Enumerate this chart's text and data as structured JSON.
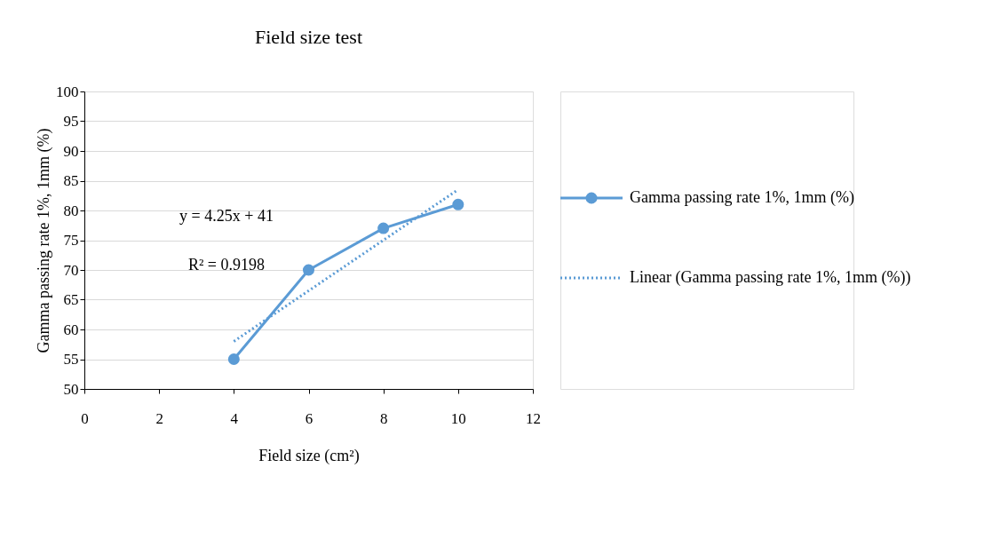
{
  "chart_data": {
    "type": "line",
    "title": "Field size test",
    "xlabel": "Field size (cm²)",
    "ylabel": "Gamma passing rate 1%, 1mm (%)",
    "x": [
      4,
      6,
      8,
      10
    ],
    "series": [
      {
        "name": "Gamma passing rate 1%, 1mm (%)",
        "color": "#5b9bd5",
        "values": [
          55,
          70,
          77,
          81
        ],
        "marker": "circle",
        "line_style": "solid"
      },
      {
        "name": "Linear (Gamma passing rate 1%, 1mm (%))",
        "color": "#5b9bd5",
        "type": "line",
        "x": [
          4,
          10
        ],
        "values": [
          58,
          83.5
        ],
        "marker": "none",
        "line_style": "dotted"
      }
    ],
    "annotations": [
      "y = 4.25x + 41",
      "R² = 0.9198"
    ],
    "xlim": [
      0,
      12
    ],
    "xticks": [
      0,
      2,
      4,
      6,
      8,
      10,
      12
    ],
    "ylim": [
      50,
      100
    ],
    "yticks": [
      50,
      55,
      60,
      65,
      70,
      75,
      80,
      85,
      90,
      95,
      100
    ],
    "grid": "y",
    "legend": "right"
  }
}
